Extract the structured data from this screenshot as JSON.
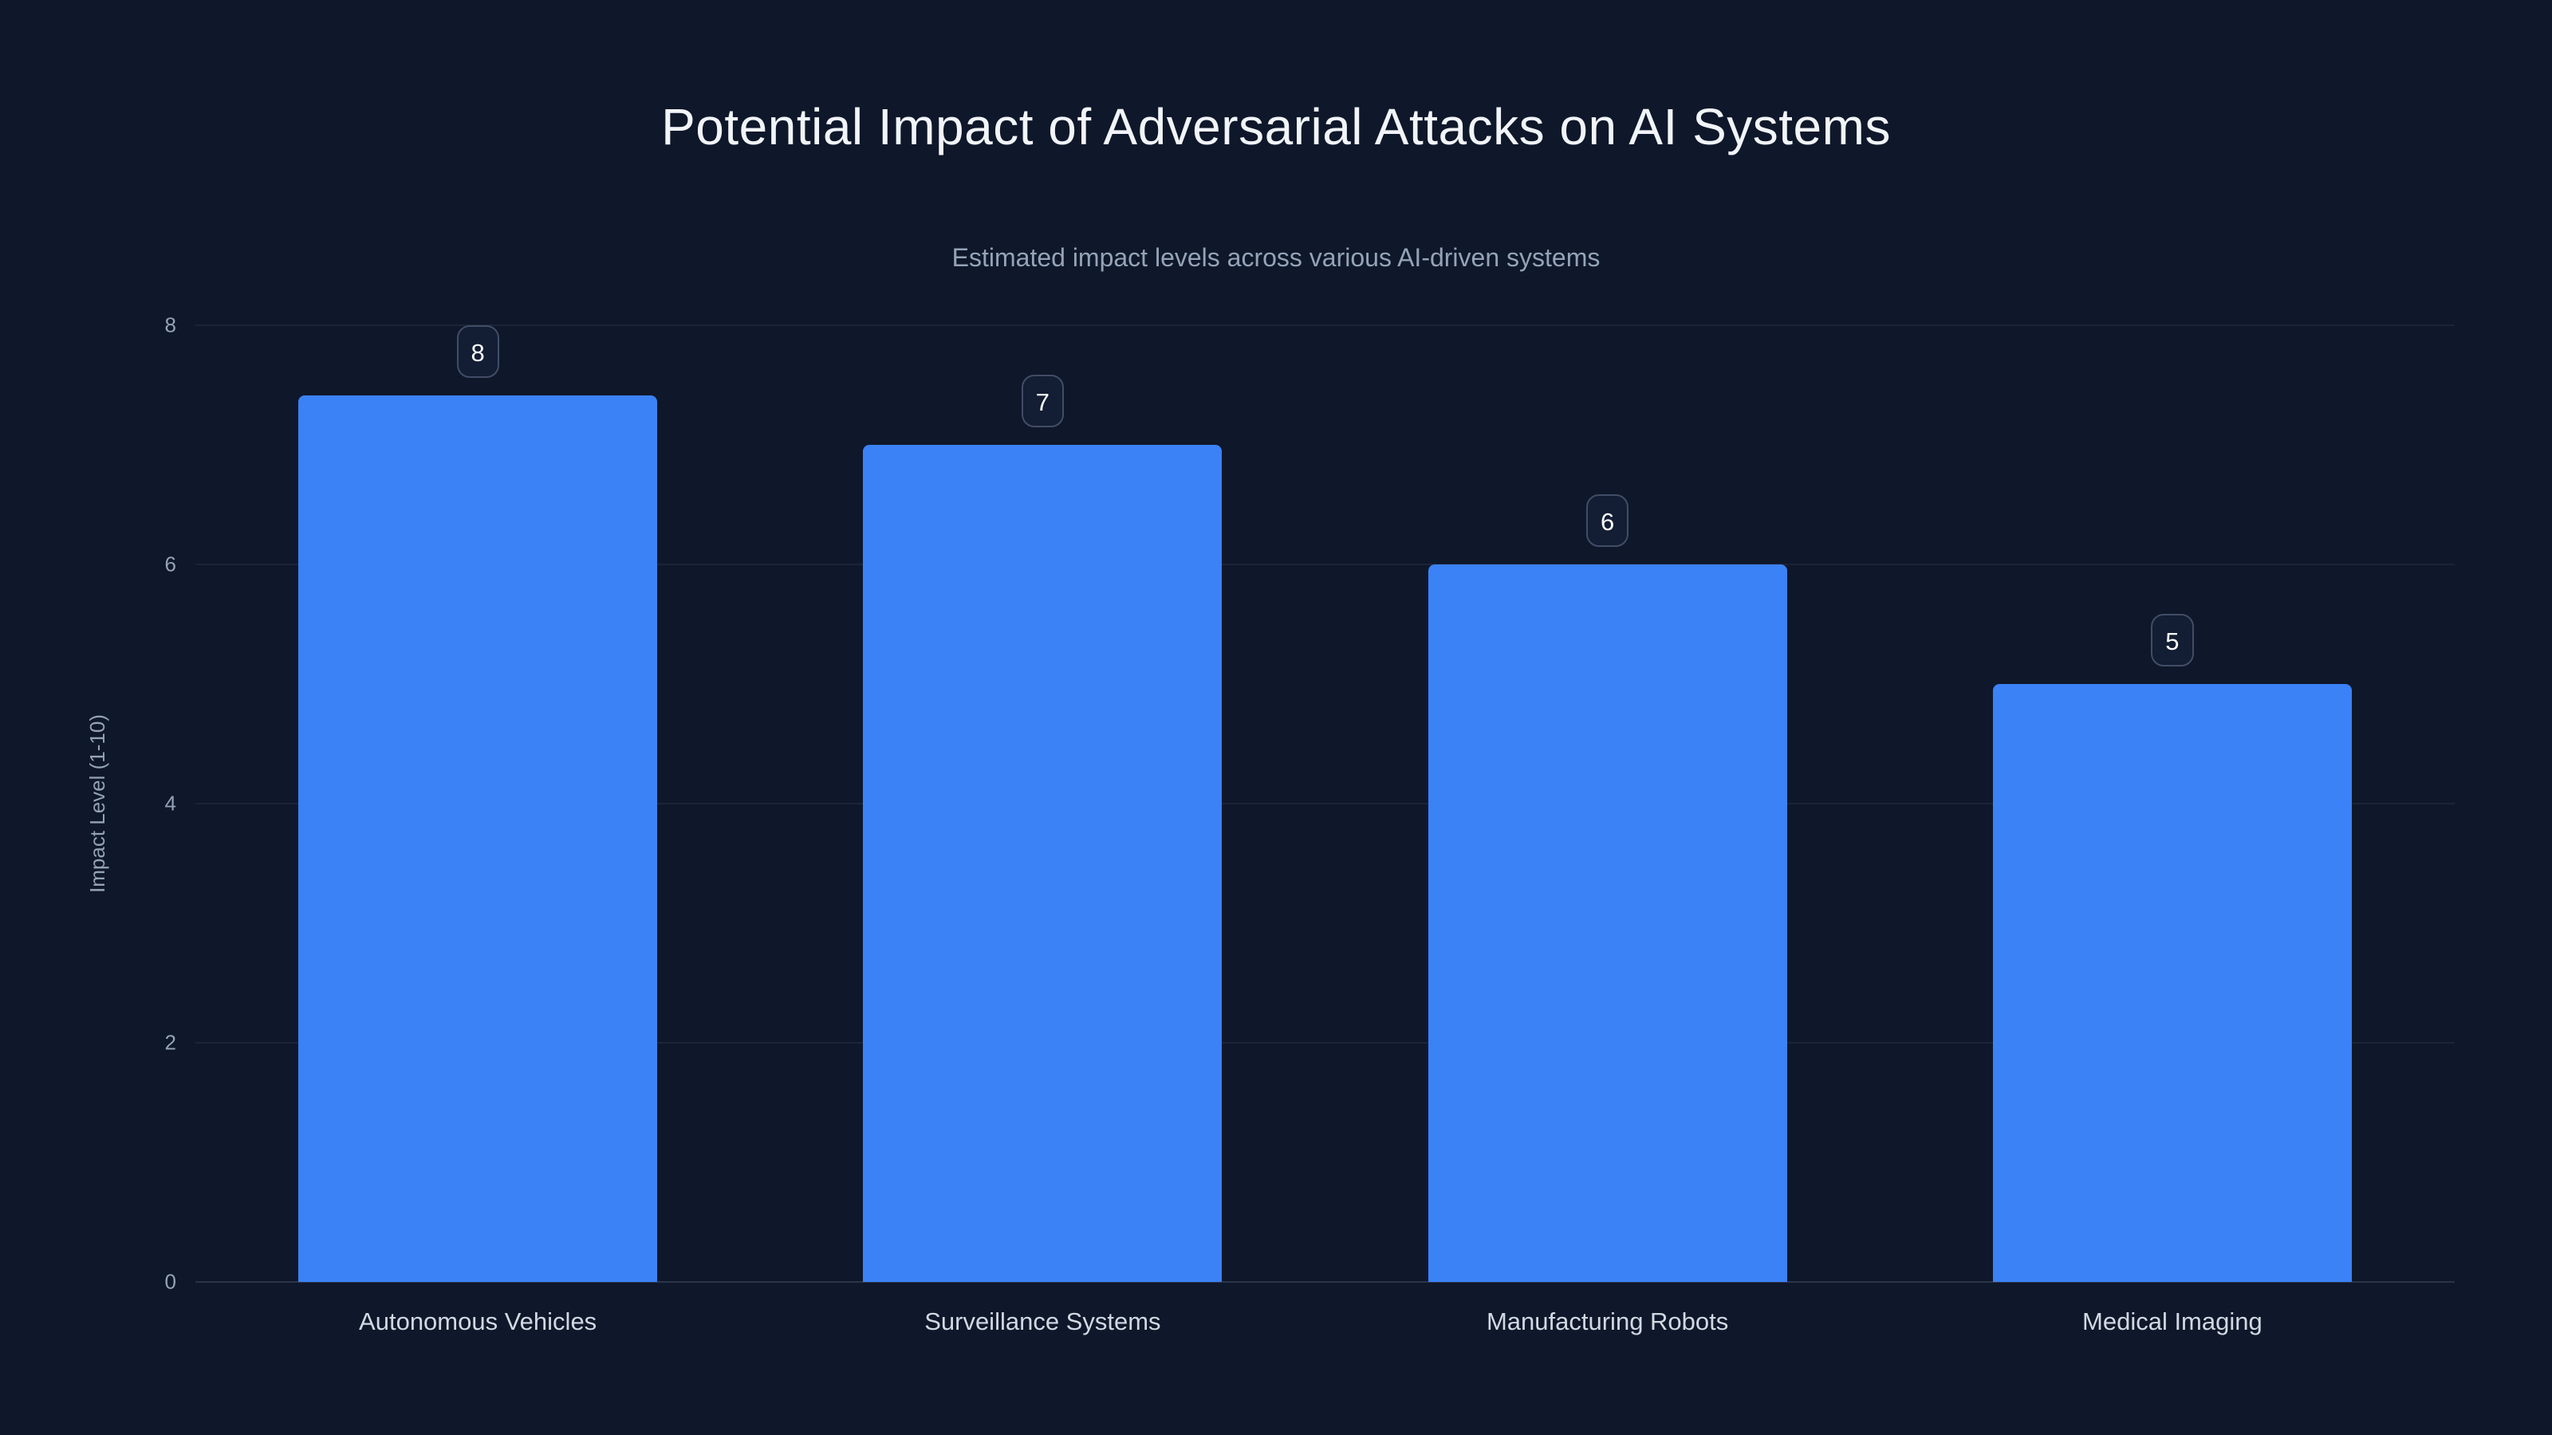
{
  "page": {
    "title": "Potential Impact of Adversarial Attacks on AI Systems",
    "subtitle": "Estimated impact levels across various AI-driven systems"
  },
  "chart_data": {
    "type": "bar",
    "title": "Potential Impact of Adversarial Attacks on AI Systems",
    "subtitle": "Estimated impact levels across various AI-driven systems",
    "categories": [
      "Autonomous Vehicles",
      "Surveillance Systems",
      "Manufacturing Robots",
      "Medical Imaging"
    ],
    "values": [
      8,
      7,
      6,
      5
    ],
    "data_labels": [
      8,
      7,
      6,
      5
    ],
    "xlabel": "",
    "ylabel": "Impact Level (1-10)",
    "ylim": [
      0,
      8
    ],
    "yticks": [
      0,
      2,
      4,
      6,
      8
    ],
    "grid": true,
    "legend": "none",
    "colors": {
      "background": "#0f172a",
      "bar": "#3b82f6",
      "gridline": "rgba(148,163,184,0.10)",
      "title_text": "#f1f5f9",
      "subtitle_text": "#94a3b8",
      "tick_text": "#94a3b8",
      "category_text": "#d1d9e3",
      "badge_border": "#414d66",
      "badge_background": "#131d33"
    }
  }
}
